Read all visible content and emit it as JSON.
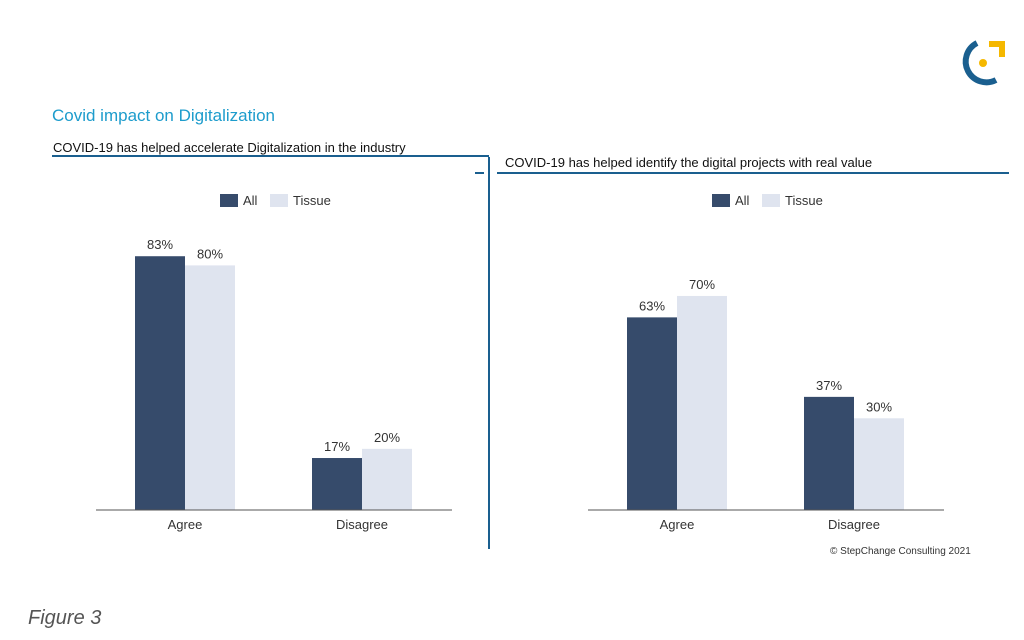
{
  "page": {
    "section_title": "Covid impact on Digitalization",
    "copyright": "© StepChange Consulting 2021",
    "figure_label": "Figure 3"
  },
  "colors": {
    "all": "#364b6b",
    "tissue": "#dfe4ef",
    "accent": "#1d9ccc",
    "rule": "#1a5f8f",
    "logo_blue": "#1a5f8f",
    "logo_yellow": "#f5b800"
  },
  "icons": {
    "logo": "stepchange-logo-icon"
  },
  "chart_data": [
    {
      "type": "bar",
      "title": "COVID-19 has helped accelerate Digitalization in the industry",
      "categories": [
        "Agree",
        "Disagree"
      ],
      "series": [
        {
          "name": "All",
          "values": [
            83,
            17
          ],
          "labels": [
            "83%",
            "17%"
          ]
        },
        {
          "name": "Tissue",
          "values": [
            80,
            20
          ],
          "labels": [
            "80%",
            "20%"
          ]
        }
      ],
      "ylim": [
        0,
        100
      ],
      "grid": false,
      "legend": "top-center"
    },
    {
      "type": "bar",
      "title": "COVID-19 has helped identify the digital projects with real value",
      "categories": [
        "Agree",
        "Disagree"
      ],
      "series": [
        {
          "name": "All",
          "values": [
            63,
            37
          ],
          "labels": [
            "63%",
            "37%"
          ]
        },
        {
          "name": "Tissue",
          "values": [
            70,
            30
          ],
          "labels": [
            "70%",
            "30%"
          ]
        }
      ],
      "ylim": [
        0,
        100
      ],
      "grid": false,
      "legend": "top-center"
    }
  ]
}
